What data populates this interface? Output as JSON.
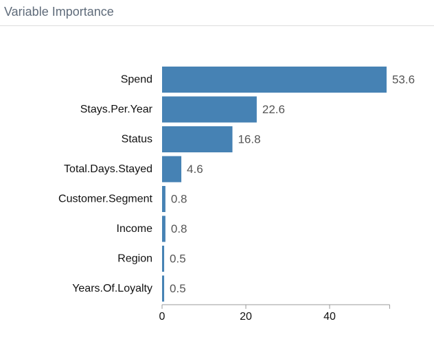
{
  "panel": {
    "title": "Variable Importance"
  },
  "chart_data": {
    "type": "bar",
    "orientation": "horizontal",
    "categories": [
      "Spend",
      "Stays.Per.Year",
      "Status",
      "Total.Days.Stayed",
      "Customer.Segment",
      "Income",
      "Region",
      "Years.Of.Loyalty"
    ],
    "values": [
      53.6,
      22.6,
      16.8,
      4.6,
      0.8,
      0.8,
      0.5,
      0.5
    ],
    "data_labels": [
      "53.6",
      "22.6",
      "16.8",
      "4.6",
      "0.8",
      "0.8",
      "0.5",
      "0.5"
    ],
    "x_ticks": [
      0,
      20,
      40
    ],
    "x_tick_labels": [
      "0",
      "20",
      "40"
    ],
    "xlim": [
      0,
      54
    ],
    "title": "",
    "xlabel": "",
    "ylabel": "",
    "grid": false,
    "legend": "none",
    "bar_color": "#4682b4"
  }
}
